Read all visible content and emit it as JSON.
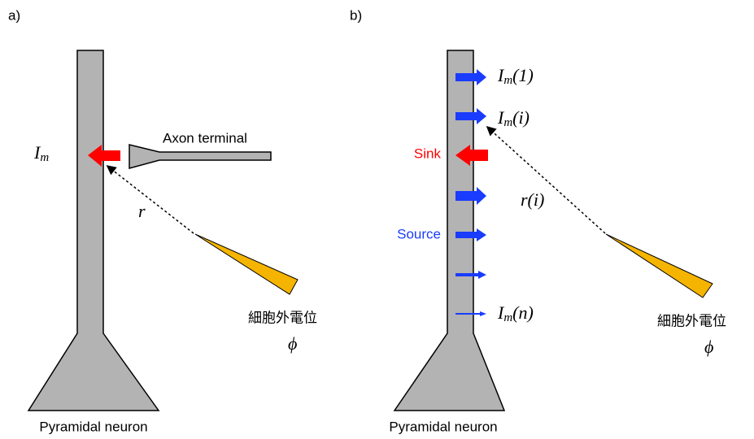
{
  "panel_a": {
    "label": "a)",
    "axon_label": "Axon terminal",
    "current": {
      "base": "I",
      "sub": "m"
    },
    "distance": "r",
    "electrode_label": "細胞外電位",
    "potential": "ϕ",
    "neuron_label": "Pyramidal neuron"
  },
  "panel_b": {
    "label": "b)",
    "sink_label": "Sink",
    "source_label": "Source",
    "currents": [
      {
        "base": "I",
        "sub": "m",
        "arg": "(1)"
      },
      {
        "base": "I",
        "sub": "m",
        "arg": "(i)"
      },
      {
        "base": "I",
        "sub": "m",
        "arg": "(n)"
      }
    ],
    "distance": "r(i)",
    "electrode_label": "細胞外電位",
    "potential": "ϕ",
    "neuron_label": "Pyramidal neuron"
  }
}
